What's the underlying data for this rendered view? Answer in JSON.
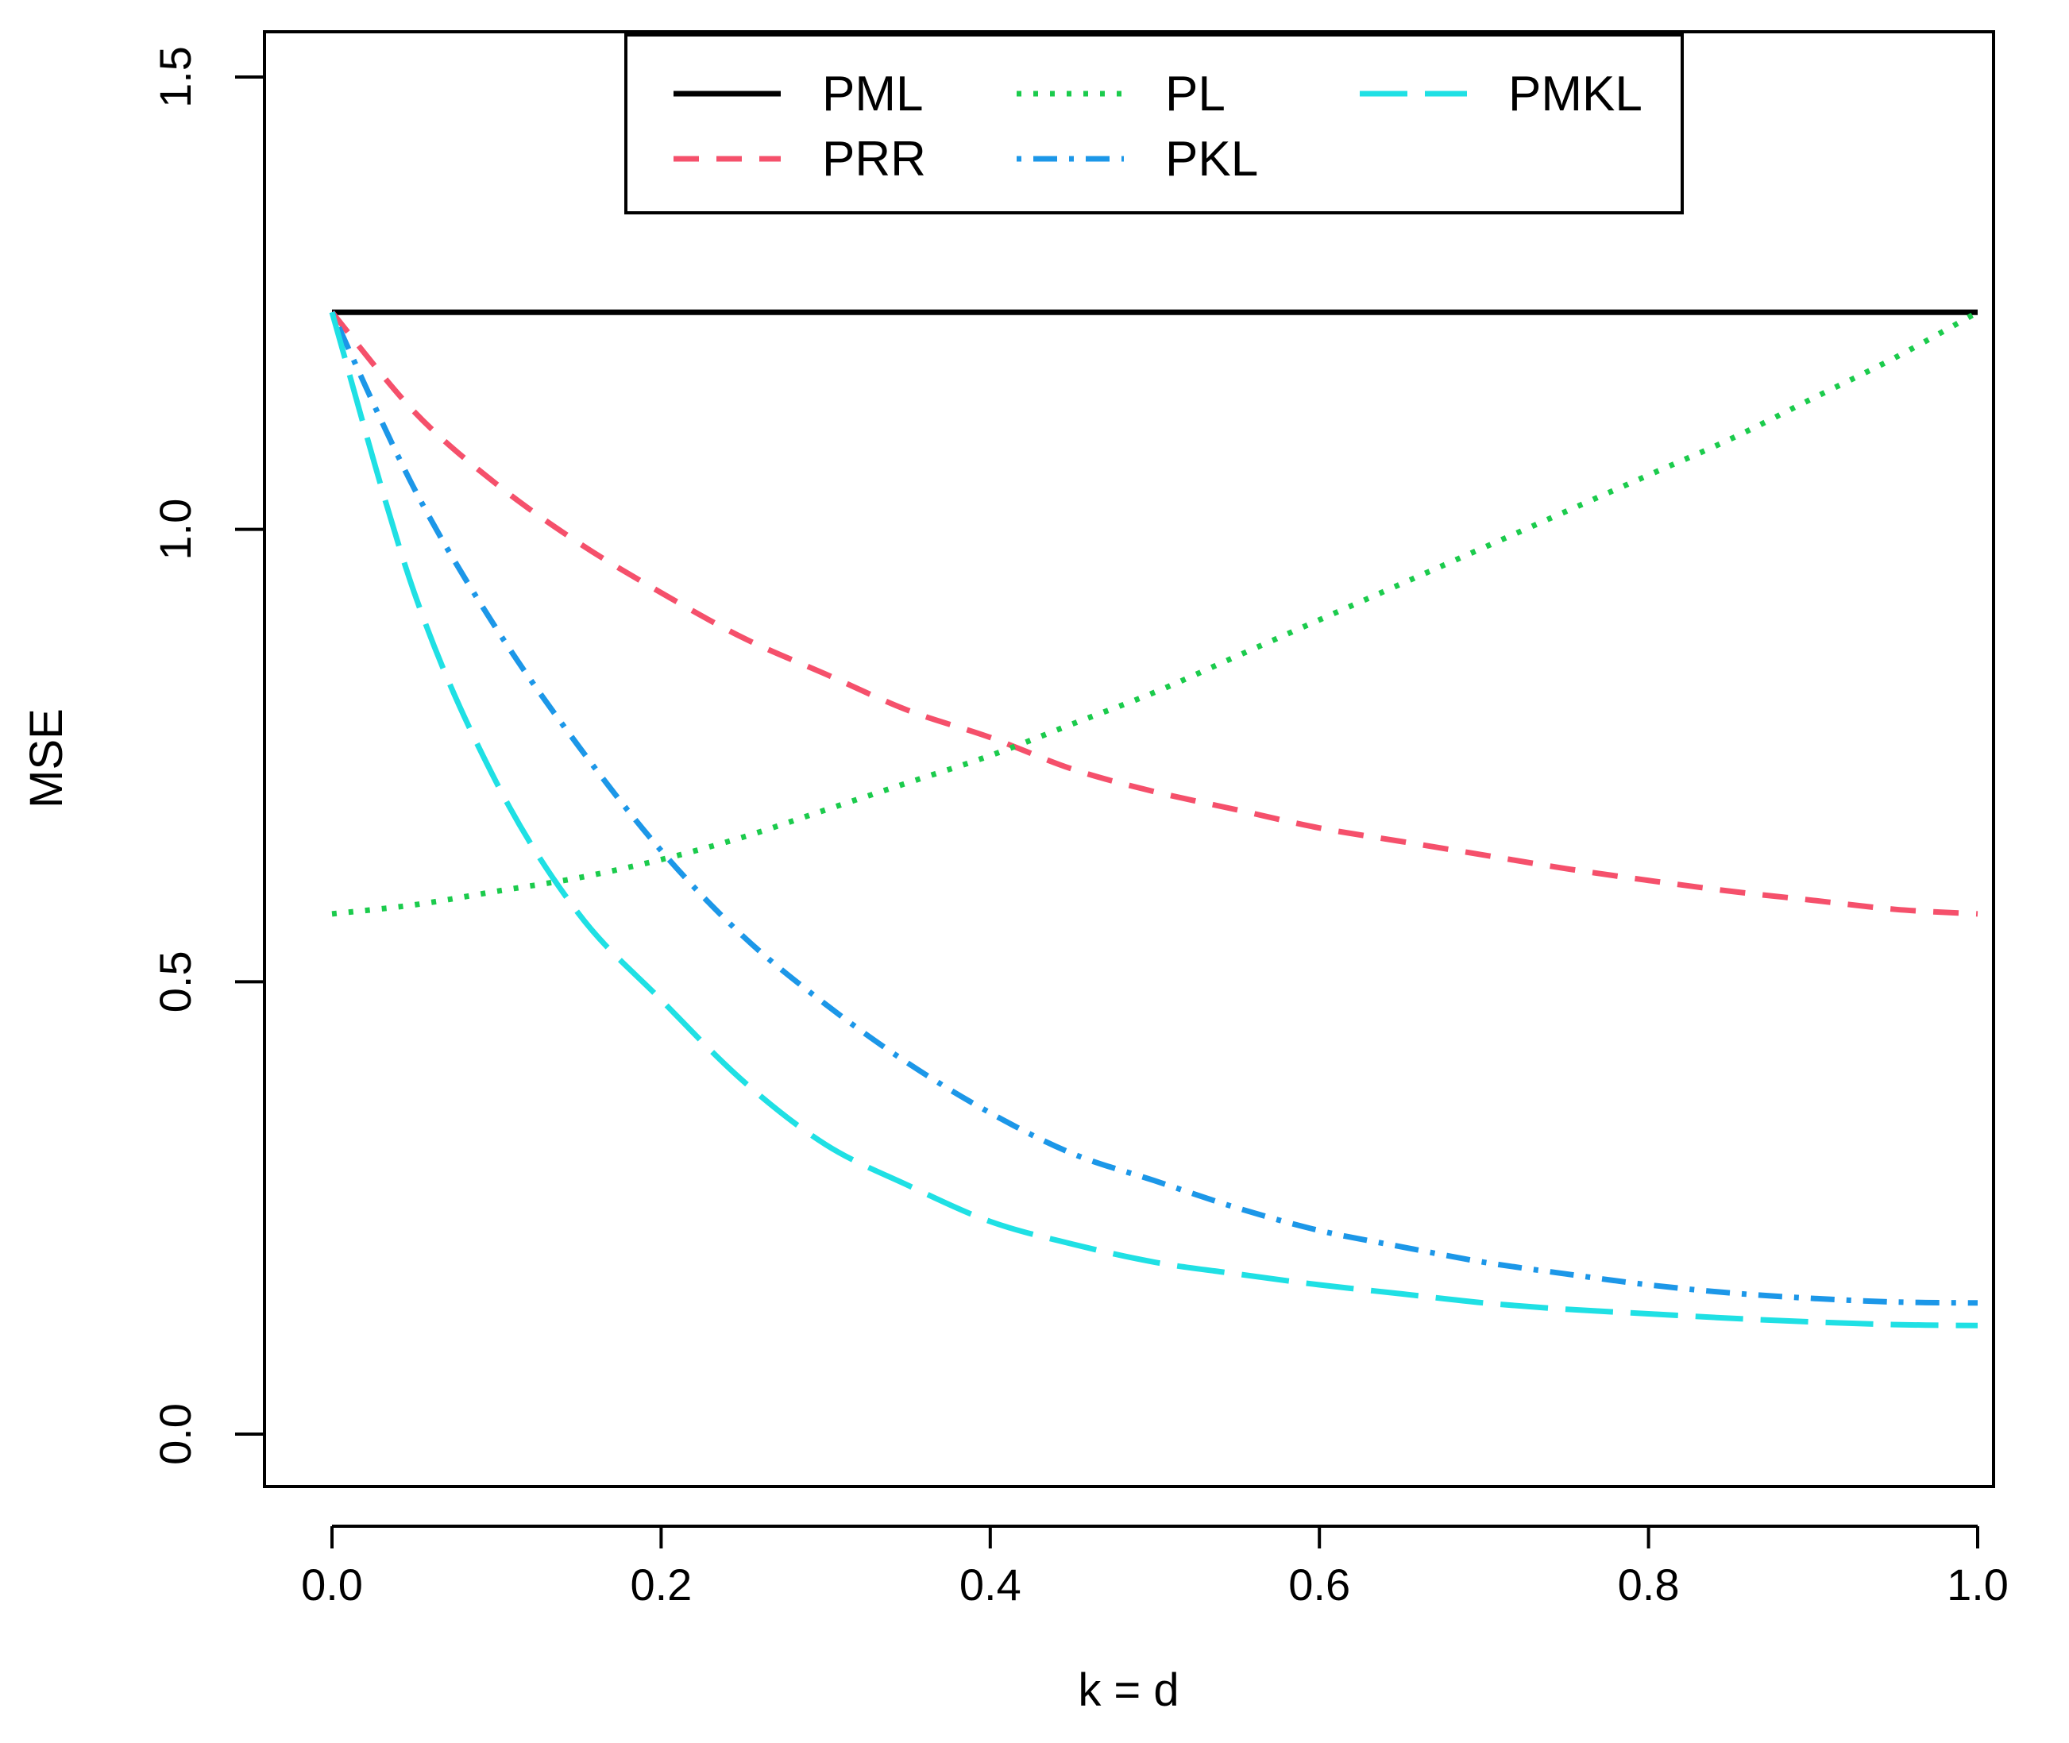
{
  "chart_data": {
    "type": "line",
    "title": "",
    "xlabel": "k = d",
    "ylabel": "MSE",
    "xlim": [
      0.0,
      1.0
    ],
    "ylim": [
      0.0,
      1.5
    ],
    "xticks": [
      "0.0",
      "0.2",
      "0.4",
      "0.6",
      "0.8",
      "1.0"
    ],
    "yticks": [
      "0.0",
      "0.5",
      "1.0",
      "1.5"
    ],
    "grid": false,
    "legend_position": "top-center",
    "x": [
      0.0,
      0.05,
      0.1,
      0.15,
      0.2,
      0.25,
      0.3,
      0.35,
      0.4,
      0.45,
      0.5,
      0.55,
      0.6,
      0.65,
      0.7,
      0.75,
      0.8,
      0.85,
      0.9,
      0.95,
      1.0
    ],
    "series": [
      {
        "name": "PML",
        "color": "#000000",
        "dash": "solid",
        "values": [
          1.24,
          1.24,
          1.24,
          1.24,
          1.24,
          1.24,
          1.24,
          1.24,
          1.24,
          1.24,
          1.24,
          1.24,
          1.24,
          1.24,
          1.24,
          1.24,
          1.24,
          1.24,
          1.24,
          1.24,
          1.24
        ]
      },
      {
        "name": "PRR",
        "color": "#F5506B",
        "dash": "dashed",
        "values": [
          1.24,
          1.13,
          1.05,
          0.985,
          0.93,
          0.88,
          0.84,
          0.8,
          0.77,
          0.735,
          0.71,
          0.69,
          0.67,
          0.655,
          0.64,
          0.625,
          0.612,
          0.6,
          0.59,
          0.58,
          0.575
        ]
      },
      {
        "name": "PL",
        "color": "#1BCB4C",
        "dash": "dotted",
        "values": [
          0.575,
          0.585,
          0.6,
          0.615,
          0.635,
          0.66,
          0.69,
          0.72,
          0.75,
          0.785,
          0.82,
          0.86,
          0.9,
          0.94,
          0.98,
          1.02,
          1.06,
          1.1,
          1.145,
          1.19,
          1.24
        ]
      },
      {
        "name": "PKL",
        "color": "#1C97E8",
        "dash": "dotdash",
        "values": [
          1.24,
          1.045,
          0.89,
          0.76,
          0.645,
          0.55,
          0.475,
          0.41,
          0.355,
          0.31,
          0.28,
          0.25,
          0.225,
          0.207,
          0.19,
          0.177,
          0.165,
          0.156,
          0.15,
          0.146,
          0.145
        ]
      },
      {
        "name": "PMKL",
        "color": "#1FE0E4",
        "dash": "longdash",
        "values": [
          1.24,
          0.93,
          0.72,
          0.575,
          0.48,
          0.39,
          0.32,
          0.275,
          0.235,
          0.21,
          0.19,
          0.177,
          0.165,
          0.155,
          0.145,
          0.138,
          0.133,
          0.128,
          0.124,
          0.121,
          0.12
        ]
      }
    ]
  }
}
